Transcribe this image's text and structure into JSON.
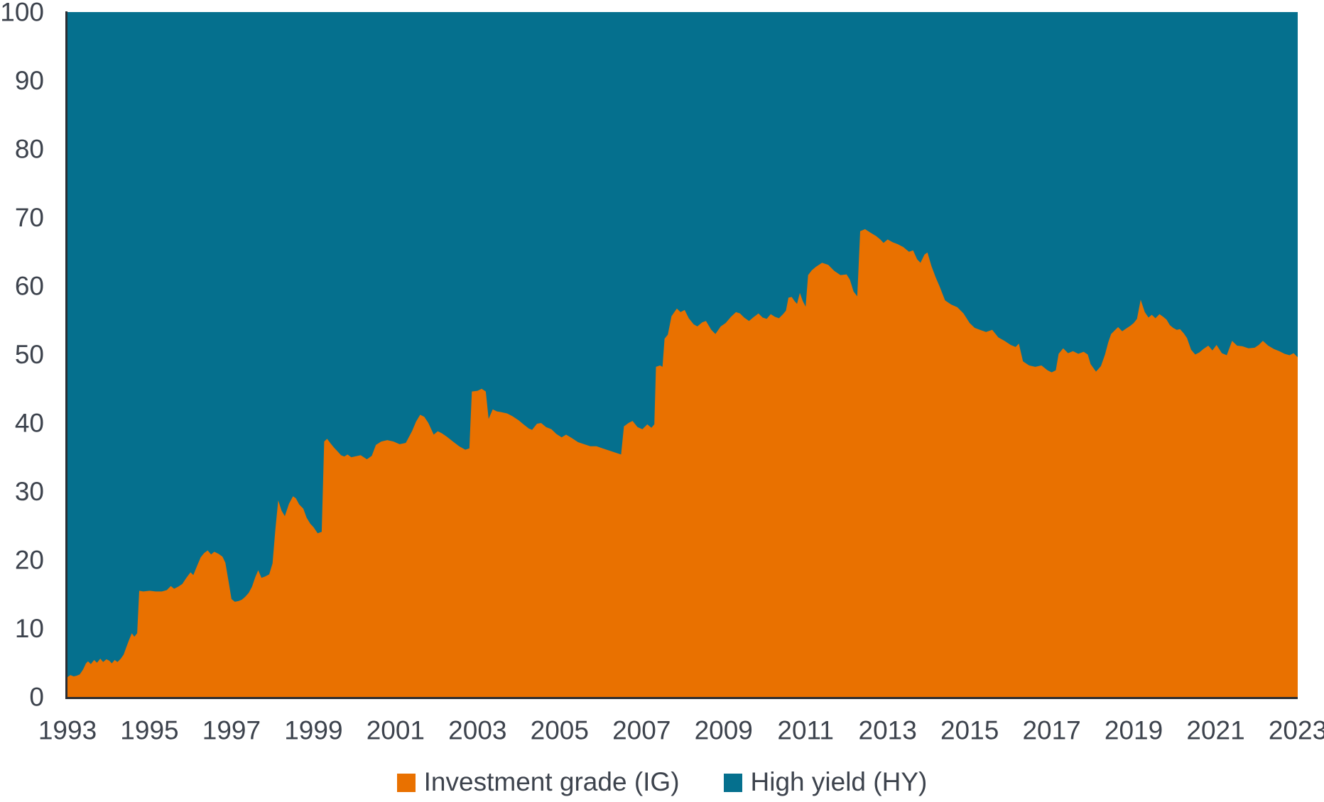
{
  "colors": {
    "background": "#ffffff",
    "axis_line": "#2a2d33",
    "tick_label": "#3d434d",
    "ig_orange": "#e97100",
    "hy_teal": "#05708e"
  },
  "legend": {
    "ig_label": "Investment grade (IG)",
    "hy_label": "High yield (HY)"
  },
  "chart_data": {
    "type": "area",
    "subtype": "100-percent-stacked",
    "title": "",
    "xlabel": "",
    "ylabel": "",
    "x_range": [
      1993,
      2023
    ],
    "y_range": [
      0,
      100
    ],
    "grid": false,
    "legend_position": "bottom-center",
    "y_ticks": [
      0,
      10,
      20,
      30,
      40,
      50,
      60,
      70,
      80,
      90,
      100
    ],
    "x_ticks": [
      1993,
      1995,
      1997,
      1999,
      2001,
      2003,
      2005,
      2007,
      2009,
      2011,
      2013,
      2015,
      2017,
      2019,
      2021,
      2023
    ],
    "series": [
      {
        "name": "Investment grade (IG)",
        "color": "#e97100",
        "points": [
          [
            1993.0,
            2.9
          ],
          [
            1993.07,
            3.2
          ],
          [
            1993.15,
            3.0
          ],
          [
            1993.22,
            3.1
          ],
          [
            1993.3,
            3.3
          ],
          [
            1993.38,
            4.0
          ],
          [
            1993.45,
            4.9
          ],
          [
            1993.5,
            5.2
          ],
          [
            1993.57,
            4.8
          ],
          [
            1993.65,
            5.4
          ],
          [
            1993.72,
            5.0
          ],
          [
            1993.8,
            5.6
          ],
          [
            1993.87,
            5.1
          ],
          [
            1993.95,
            5.5
          ],
          [
            1994.02,
            5.3
          ],
          [
            1994.08,
            4.9
          ],
          [
            1994.15,
            5.4
          ],
          [
            1994.22,
            5.1
          ],
          [
            1994.3,
            5.6
          ],
          [
            1994.37,
            6.2
          ],
          [
            1994.43,
            7.2
          ],
          [
            1994.5,
            8.3
          ],
          [
            1994.57,
            9.3
          ],
          [
            1994.63,
            8.8
          ],
          [
            1994.7,
            9.3
          ],
          [
            1994.75,
            15.5
          ],
          [
            1994.85,
            15.4
          ],
          [
            1995.0,
            15.5
          ],
          [
            1995.15,
            15.4
          ],
          [
            1995.3,
            15.4
          ],
          [
            1995.42,
            15.6
          ],
          [
            1995.52,
            16.2
          ],
          [
            1995.6,
            15.8
          ],
          [
            1995.7,
            16.1
          ],
          [
            1995.8,
            16.5
          ],
          [
            1995.9,
            17.4
          ],
          [
            1996.0,
            18.2
          ],
          [
            1996.07,
            17.8
          ],
          [
            1996.15,
            19.0
          ],
          [
            1996.25,
            20.4
          ],
          [
            1996.33,
            21.0
          ],
          [
            1996.42,
            21.4
          ],
          [
            1996.5,
            20.8
          ],
          [
            1996.58,
            21.2
          ],
          [
            1996.68,
            20.9
          ],
          [
            1996.78,
            20.5
          ],
          [
            1996.85,
            19.6
          ],
          [
            1996.93,
            16.8
          ],
          [
            1997.0,
            14.3
          ],
          [
            1997.08,
            13.9
          ],
          [
            1997.17,
            14.0
          ],
          [
            1997.25,
            14.2
          ],
          [
            1997.33,
            14.6
          ],
          [
            1997.42,
            15.2
          ],
          [
            1997.5,
            16.1
          ],
          [
            1997.58,
            17.5
          ],
          [
            1997.65,
            18.5
          ],
          [
            1997.73,
            17.4
          ],
          [
            1997.82,
            17.6
          ],
          [
            1997.92,
            17.9
          ],
          [
            1998.0,
            19.5
          ],
          [
            1998.07,
            24.5
          ],
          [
            1998.14,
            28.7
          ],
          [
            1998.22,
            27.2
          ],
          [
            1998.3,
            26.4
          ],
          [
            1998.4,
            28.2
          ],
          [
            1998.5,
            29.3
          ],
          [
            1998.57,
            29.0
          ],
          [
            1998.65,
            28.1
          ],
          [
            1998.75,
            27.5
          ],
          [
            1998.83,
            26.2
          ],
          [
            1998.92,
            25.3
          ],
          [
            1999.0,
            24.8
          ],
          [
            1999.1,
            23.9
          ],
          [
            1999.2,
            24.1
          ],
          [
            1999.26,
            37.3
          ],
          [
            1999.33,
            37.7
          ],
          [
            1999.42,
            37.0
          ],
          [
            1999.5,
            36.4
          ],
          [
            1999.58,
            35.9
          ],
          [
            1999.67,
            35.3
          ],
          [
            1999.75,
            35.1
          ],
          [
            1999.83,
            35.4
          ],
          [
            1999.92,
            35.0
          ],
          [
            2000.0,
            35.1
          ],
          [
            2000.15,
            35.3
          ],
          [
            2000.3,
            34.7
          ],
          [
            2000.42,
            35.2
          ],
          [
            2000.52,
            36.8
          ],
          [
            2000.65,
            37.3
          ],
          [
            2000.8,
            37.5
          ],
          [
            2000.95,
            37.3
          ],
          [
            2001.1,
            36.9
          ],
          [
            2001.25,
            37.1
          ],
          [
            2001.4,
            38.8
          ],
          [
            2001.5,
            40.2
          ],
          [
            2001.6,
            41.2
          ],
          [
            2001.7,
            40.9
          ],
          [
            2001.8,
            40.0
          ],
          [
            2001.93,
            38.3
          ],
          [
            2002.03,
            38.8
          ],
          [
            2002.13,
            38.5
          ],
          [
            2002.25,
            38.0
          ],
          [
            2002.4,
            37.3
          ],
          [
            2002.55,
            36.6
          ],
          [
            2002.7,
            36.1
          ],
          [
            2002.8,
            36.3
          ],
          [
            2002.86,
            44.6
          ],
          [
            2003.0,
            44.7
          ],
          [
            2003.1,
            45.0
          ],
          [
            2003.2,
            44.6
          ],
          [
            2003.27,
            40.6
          ],
          [
            2003.37,
            42.0
          ],
          [
            2003.47,
            41.7
          ],
          [
            2003.57,
            41.6
          ],
          [
            2003.72,
            41.4
          ],
          [
            2003.85,
            41.0
          ],
          [
            2004.0,
            40.4
          ],
          [
            2004.12,
            39.8
          ],
          [
            2004.25,
            39.2
          ],
          [
            2004.33,
            39.0
          ],
          [
            2004.45,
            39.9
          ],
          [
            2004.55,
            40.0
          ],
          [
            2004.67,
            39.4
          ],
          [
            2004.8,
            39.1
          ],
          [
            2004.92,
            38.4
          ],
          [
            2005.05,
            37.9
          ],
          [
            2005.16,
            38.3
          ],
          [
            2005.3,
            37.8
          ],
          [
            2005.45,
            37.2
          ],
          [
            2005.6,
            36.9
          ],
          [
            2005.75,
            36.6
          ],
          [
            2005.9,
            36.6
          ],
          [
            2006.05,
            36.3
          ],
          [
            2006.2,
            36.0
          ],
          [
            2006.35,
            35.7
          ],
          [
            2006.5,
            35.4
          ],
          [
            2006.57,
            39.5
          ],
          [
            2006.68,
            40.0
          ],
          [
            2006.78,
            40.3
          ],
          [
            2006.9,
            39.4
          ],
          [
            2007.02,
            39.1
          ],
          [
            2007.14,
            39.8
          ],
          [
            2007.24,
            39.3
          ],
          [
            2007.31,
            39.8
          ],
          [
            2007.35,
            48.2
          ],
          [
            2007.45,
            48.4
          ],
          [
            2007.51,
            48.2
          ],
          [
            2007.56,
            52.3
          ],
          [
            2007.64,
            52.9
          ],
          [
            2007.73,
            55.6
          ],
          [
            2007.86,
            56.7
          ],
          [
            2007.95,
            56.2
          ],
          [
            2008.05,
            56.5
          ],
          [
            2008.15,
            55.3
          ],
          [
            2008.27,
            54.4
          ],
          [
            2008.36,
            54.1
          ],
          [
            2008.48,
            54.7
          ],
          [
            2008.57,
            54.9
          ],
          [
            2008.7,
            53.6
          ],
          [
            2008.8,
            53.0
          ],
          [
            2008.93,
            54.1
          ],
          [
            2009.05,
            54.6
          ],
          [
            2009.18,
            55.5
          ],
          [
            2009.3,
            56.2
          ],
          [
            2009.4,
            56.0
          ],
          [
            2009.5,
            55.4
          ],
          [
            2009.62,
            54.9
          ],
          [
            2009.72,
            55.4
          ],
          [
            2009.85,
            56.0
          ],
          [
            2009.95,
            55.4
          ],
          [
            2010.05,
            55.2
          ],
          [
            2010.15,
            55.9
          ],
          [
            2010.25,
            55.5
          ],
          [
            2010.35,
            55.3
          ],
          [
            2010.45,
            55.9
          ],
          [
            2010.52,
            56.4
          ],
          [
            2010.58,
            58.3
          ],
          [
            2010.66,
            58.4
          ],
          [
            2010.73,
            57.8
          ],
          [
            2010.79,
            57.4
          ],
          [
            2010.86,
            59.0
          ],
          [
            2010.93,
            57.8
          ],
          [
            2011.0,
            57.0
          ],
          [
            2011.06,
            61.6
          ],
          [
            2011.15,
            62.3
          ],
          [
            2011.25,
            62.8
          ],
          [
            2011.4,
            63.4
          ],
          [
            2011.55,
            63.1
          ],
          [
            2011.7,
            62.2
          ],
          [
            2011.85,
            61.6
          ],
          [
            2012.0,
            61.7
          ],
          [
            2012.08,
            60.9
          ],
          [
            2012.17,
            59.2
          ],
          [
            2012.26,
            58.5
          ],
          [
            2012.33,
            68.0
          ],
          [
            2012.45,
            68.3
          ],
          [
            2012.58,
            67.8
          ],
          [
            2012.72,
            67.3
          ],
          [
            2012.82,
            66.8
          ],
          [
            2012.9,
            66.3
          ],
          [
            2013.0,
            66.8
          ],
          [
            2013.12,
            66.4
          ],
          [
            2013.25,
            66.1
          ],
          [
            2013.38,
            65.7
          ],
          [
            2013.52,
            65.0
          ],
          [
            2013.62,
            65.2
          ],
          [
            2013.72,
            63.9
          ],
          [
            2013.8,
            63.4
          ],
          [
            2013.9,
            64.6
          ],
          [
            2013.97,
            64.9
          ],
          [
            2014.07,
            62.9
          ],
          [
            2014.17,
            61.3
          ],
          [
            2014.27,
            59.9
          ],
          [
            2014.4,
            57.9
          ],
          [
            2014.55,
            57.3
          ],
          [
            2014.7,
            56.9
          ],
          [
            2014.85,
            56.0
          ],
          [
            2015.0,
            54.6
          ],
          [
            2015.12,
            53.9
          ],
          [
            2015.25,
            53.6
          ],
          [
            2015.4,
            53.3
          ],
          [
            2015.55,
            53.6
          ],
          [
            2015.7,
            52.5
          ],
          [
            2015.85,
            52.0
          ],
          [
            2016.0,
            51.4
          ],
          [
            2016.12,
            51.1
          ],
          [
            2016.2,
            51.6
          ],
          [
            2016.3,
            49.0
          ],
          [
            2016.45,
            48.4
          ],
          [
            2016.6,
            48.2
          ],
          [
            2016.75,
            48.4
          ],
          [
            2016.9,
            47.7
          ],
          [
            2017.0,
            47.4
          ],
          [
            2017.1,
            47.7
          ],
          [
            2017.17,
            50.1
          ],
          [
            2017.28,
            50.9
          ],
          [
            2017.4,
            50.2
          ],
          [
            2017.52,
            50.5
          ],
          [
            2017.65,
            50.1
          ],
          [
            2017.78,
            50.4
          ],
          [
            2017.88,
            50.0
          ],
          [
            2017.95,
            48.6
          ],
          [
            2018.08,
            47.5
          ],
          [
            2018.2,
            48.3
          ],
          [
            2018.3,
            50.0
          ],
          [
            2018.38,
            51.8
          ],
          [
            2018.45,
            53.0
          ],
          [
            2018.55,
            53.6
          ],
          [
            2018.62,
            54.0
          ],
          [
            2018.72,
            53.4
          ],
          [
            2018.82,
            53.8
          ],
          [
            2018.92,
            54.2
          ],
          [
            2019.0,
            54.6
          ],
          [
            2019.08,
            55.2
          ],
          [
            2019.17,
            58.0
          ],
          [
            2019.27,
            56.2
          ],
          [
            2019.36,
            55.4
          ],
          [
            2019.44,
            55.8
          ],
          [
            2019.53,
            55.3
          ],
          [
            2019.63,
            55.9
          ],
          [
            2019.72,
            55.5
          ],
          [
            2019.8,
            55.1
          ],
          [
            2019.88,
            54.3
          ],
          [
            2019.96,
            53.9
          ],
          [
            2020.05,
            53.6
          ],
          [
            2020.13,
            53.7
          ],
          [
            2020.22,
            53.1
          ],
          [
            2020.3,
            52.4
          ],
          [
            2020.4,
            50.7
          ],
          [
            2020.5,
            50.0
          ],
          [
            2020.6,
            50.3
          ],
          [
            2020.7,
            50.8
          ],
          [
            2020.82,
            51.3
          ],
          [
            2020.92,
            50.6
          ],
          [
            2021.02,
            51.4
          ],
          [
            2021.15,
            50.2
          ],
          [
            2021.27,
            49.9
          ],
          [
            2021.4,
            52.0
          ],
          [
            2021.52,
            51.3
          ],
          [
            2021.65,
            51.2
          ],
          [
            2021.8,
            50.9
          ],
          [
            2021.95,
            51.0
          ],
          [
            2022.05,
            51.4
          ],
          [
            2022.15,
            52.0
          ],
          [
            2022.28,
            51.3
          ],
          [
            2022.42,
            50.8
          ],
          [
            2022.55,
            50.5
          ],
          [
            2022.68,
            50.1
          ],
          [
            2022.8,
            49.9
          ],
          [
            2022.9,
            50.2
          ],
          [
            2023.0,
            49.6
          ]
        ]
      },
      {
        "name": "High yield (HY)",
        "color": "#05708e",
        "derived": "100 minus Investment grade (stacked to 100%)"
      }
    ]
  }
}
